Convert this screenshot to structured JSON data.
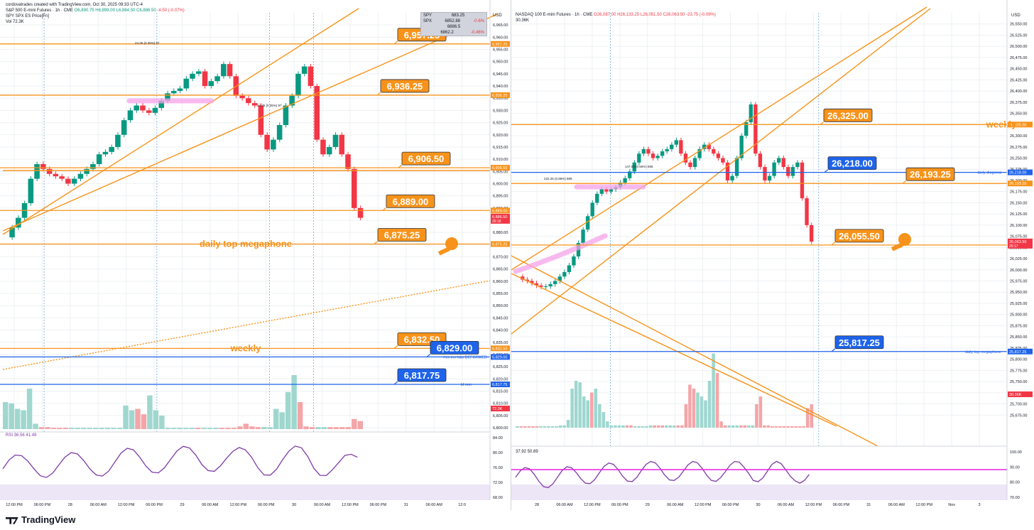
{
  "credit": "cordovatrades created with TradingView.com, Oct 30, 2025 09:33 UTC-4",
  "footer": "TradingView",
  "colors": {
    "up": "#089981",
    "down": "#f23645",
    "orange": "#f7931a",
    "blue": "#1e63e9",
    "purple": "#7e3ba6",
    "magenta": "#e91ee3",
    "grid": "#eef0f3"
  },
  "chart_data": [
    {
      "type": "candlestick",
      "title": "S&P 500 E-mini Futures · 1h · CME",
      "ohlc_header": {
        "o": "O6,890.75",
        "h": "H6,899.00",
        "l": "L6,884.50",
        "c": "C6,886.50",
        "chg": "-4.50 (-0.07%)"
      },
      "sub_series": [
        "SPY SPX ES Price[Fn]",
        "Vol 72.3K"
      ],
      "currency": "USD",
      "ylim": [
        6800,
        6970
      ],
      "y_ticks": [
        "6,965.00",
        "6,960.00",
        "6,955.00",
        "6,950.00",
        "6,945.00",
        "6,940.00",
        "6,935.00",
        "6,930.00",
        "6,925.00",
        "6,920.00",
        "6,915.00",
        "6,910.00",
        "6,905.00",
        "6,900.00",
        "6,895.00",
        "6,890.00",
        "6,885.00",
        "6,880.00",
        "6,875.00",
        "6,870.00",
        "6,865.00",
        "6,860.00",
        "6,855.00",
        "6,850.00",
        "6,845.00",
        "6,840.00",
        "6,835.00",
        "6,830.00",
        "6,825.00",
        "6,820.00",
        "6,815.00",
        "6,810.00",
        "6,805.00",
        "6,800.00"
      ],
      "x_ticks": [
        "12:00 PM",
        "06:00 PM",
        "28",
        "06:00 AM",
        "12:00 PM",
        "06:00 PM",
        "29",
        "06:00 AM",
        "12:00 PM",
        "06:00 PM",
        "30",
        "06:00 AM",
        "12:00 PM",
        "06:00 PM",
        "31",
        "06:00 AM",
        "12:0"
      ],
      "table": [
        [
          "SPY",
          "683.25",
          ""
        ],
        [
          "SPX",
          "6852.88",
          "-0.6%"
        ],
        [
          "",
          "6886.5",
          ""
        ],
        [
          "",
          "6862.2",
          "-0.46%"
        ]
      ],
      "levels": [
        {
          "value": 6957.25,
          "label": "6,957.25",
          "color": "orange"
        },
        {
          "value": 6936.25,
          "label": "6,936.25",
          "color": "orange"
        },
        {
          "value": 6906.5,
          "label": "6,906.50",
          "color": "orange"
        },
        {
          "value": 6889.0,
          "label": "6,889.00",
          "color": "orange"
        },
        {
          "value": 6875.25,
          "label": "6,875.25",
          "color": "orange",
          "note": "daily top megaphone"
        },
        {
          "value": 6832.5,
          "label": "6,832.50",
          "color": "orange",
          "note": "weekly"
        },
        {
          "value": 6829.0,
          "label": "6,829.00",
          "color": "blue",
          "note": "mm inv h&s DEFORMED"
        },
        {
          "value": 6817.75,
          "label": "6,817.75",
          "color": "blue",
          "note": "bf mm"
        }
      ],
      "price_tag": {
        "value": 6886.5,
        "label": "6,886.50",
        "time": "26:18"
      },
      "vol_tag": "72.3K",
      "annotations": [
        "24.25 (0.35%) 97",
        "24.25 (0.35%) 97"
      ],
      "close_path": [
        6878,
        6882,
        6886,
        6892,
        6902,
        6908,
        6906,
        6904,
        6903,
        6902,
        6900,
        6902,
        6904,
        6906,
        6908,
        6912,
        6913,
        6915,
        6920,
        6926,
        6930,
        6932,
        6930,
        6929,
        6931,
        6934,
        6937,
        6938,
        6939,
        6943,
        6945,
        6946,
        6940,
        6942,
        6944,
        6949,
        6944,
        6936,
        6935,
        6933,
        6932,
        6920,
        6914,
        6918,
        6924,
        6932,
        6936,
        6945,
        6948,
        6940,
        6918,
        6912,
        6915,
        6920,
        6912,
        6906,
        6890,
        6886
      ],
      "volume_path": [
        40,
        38,
        30,
        28,
        60,
        8,
        3,
        3,
        2,
        2,
        2,
        2,
        2,
        2,
        2,
        2,
        2,
        2,
        2,
        2,
        35,
        28,
        30,
        22,
        50,
        28,
        20,
        2,
        2,
        2,
        2,
        2,
        2,
        2,
        2,
        2,
        2,
        2,
        2,
        4,
        8,
        4,
        3,
        3,
        3,
        30,
        25,
        55,
        80,
        40,
        4,
        3,
        3,
        3,
        3,
        3,
        3,
        3,
        15,
        12
      ],
      "rsi": {
        "label": "RSI 36.56 41.49",
        "ticks": [
          "84.00",
          "80.00",
          "76.00",
          "72.00",
          "68.00"
        ]
      }
    },
    {
      "type": "candlestick",
      "title": "NASDAQ 100 E-mini Futures · 1h · CME",
      "ohlc_header": {
        "o": "O26,087.00",
        "h": "H26,133.25",
        "l": "L26,051.50",
        "c": "C26,063.50",
        "chg": "-23.75 (-0.09%)"
      },
      "sub_series": [
        "30.36K"
      ],
      "currency": "USD",
      "ylim": [
        25650,
        26575
      ],
      "y_ticks": [
        "26,550.00",
        "26,525.00",
        "26,500.00",
        "26,475.00",
        "26,450.00",
        "26,425.00",
        "26,400.00",
        "26,375.00",
        "26,350.00",
        "26,325.00",
        "26,300.00",
        "26,275.00",
        "26,250.00",
        "26,225.00",
        "26,200.00",
        "26,175.00",
        "26,150.00",
        "26,125.00",
        "26,100.00",
        "26,075.00",
        "26,050.00",
        "26,025.00",
        "26,000.00",
        "25,975.00",
        "25,950.00",
        "25,925.00",
        "25,900.00",
        "25,875.00",
        "25,850.00",
        "25,825.00",
        "25,800.00",
        "25,775.00",
        "25,750.00",
        "25,725.00",
        "25,700.00",
        "25,675.00"
      ],
      "x_ticks": [
        "28",
        "06:00 AM",
        "12:00 PM",
        "06:00 PM",
        "29",
        "06:00 AM",
        "12:00 PM",
        "06:00 PM",
        "30",
        "06:00 AM",
        "12:00 PM",
        "06:00 PM",
        "31",
        "06:00 AM",
        "12:00 PM",
        "Nov",
        "3"
      ],
      "levels": [
        {
          "value": 26325.0,
          "label": "26,325.00",
          "color": "orange",
          "note": "weekly"
        },
        {
          "value": 26218.0,
          "label": "26,218.00",
          "color": "blue",
          "note": "daily diagonal"
        },
        {
          "value": 26193.25,
          "label": "26,193.25",
          "color": "orange"
        },
        {
          "value": 26055.5,
          "label": "26,055.50",
          "color": "orange"
        },
        {
          "value": 25817.25,
          "label": "25,817.25",
          "color": "blue",
          "note": "daily top megaphone"
        }
      ],
      "price_tag": {
        "value": 26063.5,
        "label": "26,063.50",
        "time": "26:17"
      },
      "vol_tag": "30.36K",
      "annotations": [
        "222.25 (0.86%) 889",
        "147.00 (0.56%) 668"
      ],
      "close_path": [
        25985,
        25978,
        25975,
        25970,
        25965,
        25962,
        25963,
        25968,
        25975,
        25985,
        25995,
        26010,
        26030,
        26060,
        26090,
        26120,
        26150,
        26170,
        26180,
        26175,
        26180,
        26185,
        26195,
        26205,
        26220,
        26240,
        26260,
        26270,
        26260,
        26250,
        26255,
        26265,
        26270,
        26280,
        26290,
        26260,
        26240,
        26230,
        26250,
        26270,
        26280,
        26270,
        26260,
        26250,
        26240,
        26200,
        26210,
        26250,
        26300,
        26330,
        26370,
        26260,
        26230,
        26200,
        26210,
        26240,
        26250,
        26230,
        26210,
        26230,
        26240,
        26160,
        26100,
        26063
      ],
      "volume_path": [
        2,
        2,
        2,
        2,
        2,
        2,
        2,
        2,
        2,
        2,
        2,
        3,
        3,
        10,
        50,
        60,
        58,
        40,
        35,
        45,
        50,
        30,
        20,
        8,
        3,
        3,
        3,
        3,
        3,
        3,
        2,
        2,
        2,
        2,
        3,
        3,
        3,
        3,
        3,
        3,
        3,
        3,
        3,
        30,
        55,
        50,
        45,
        40,
        35,
        60,
        95,
        70,
        8,
        3,
        3,
        3,
        3,
        3,
        3,
        3,
        3,
        30,
        40,
        3,
        3,
        2,
        2,
        2,
        2,
        2,
        2,
        2,
        2,
        2,
        25,
        30
      ],
      "rsi": {
        "label": "37.92 50.89",
        "ticks": [
          "100.00",
          "90.00",
          "80.00",
          "70.00"
        ]
      }
    }
  ]
}
